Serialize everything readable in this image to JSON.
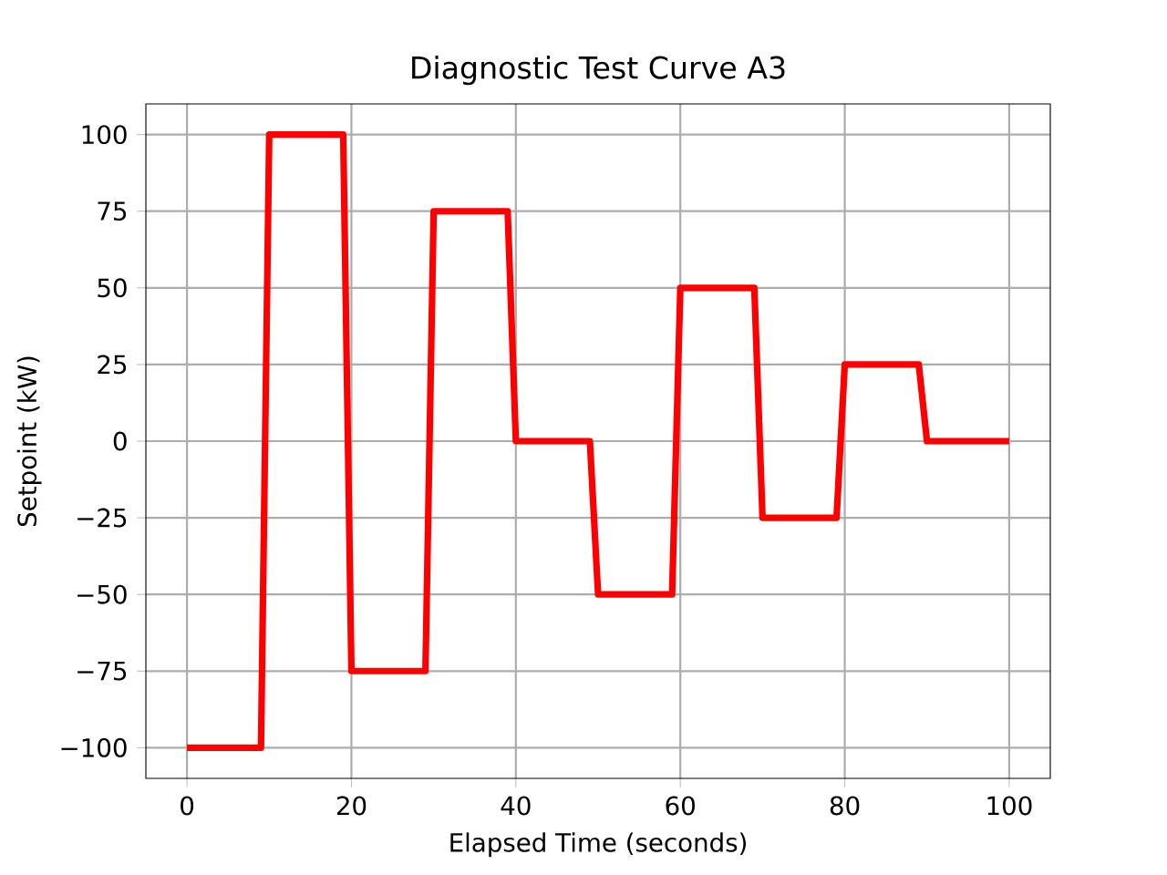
{
  "chart_data": {
    "type": "line",
    "title": "Diagnostic Test Curve A3",
    "xlabel": "Elapsed Time (seconds)",
    "ylabel": "Setpoint (kW)",
    "x": [
      0,
      9,
      10,
      19,
      20,
      29,
      30,
      39,
      40,
      49,
      50,
      59,
      60,
      69,
      70,
      79,
      80,
      89,
      90,
      100
    ],
    "series": [
      {
        "color": "#ff0000",
        "values": [
          -100,
          -100,
          100,
          100,
          -75,
          -75,
          75,
          75,
          0,
          0,
          -50,
          -50,
          50,
          50,
          -25,
          -25,
          25,
          25,
          0,
          0
        ]
      }
    ],
    "xlim": [
      -5,
      105
    ],
    "ylim": [
      -110,
      110
    ],
    "xticks": [
      0,
      20,
      40,
      60,
      80,
      100
    ],
    "yticks": [
      {
        "value": -100,
        "label": "−100"
      },
      {
        "value": -75,
        "label": "−75"
      },
      {
        "value": -50,
        "label": "−50"
      },
      {
        "value": -25,
        "label": "−25"
      },
      0,
      25,
      50,
      75,
      100
    ],
    "grid": true,
    "marker": "none",
    "line_style": "solid"
  }
}
